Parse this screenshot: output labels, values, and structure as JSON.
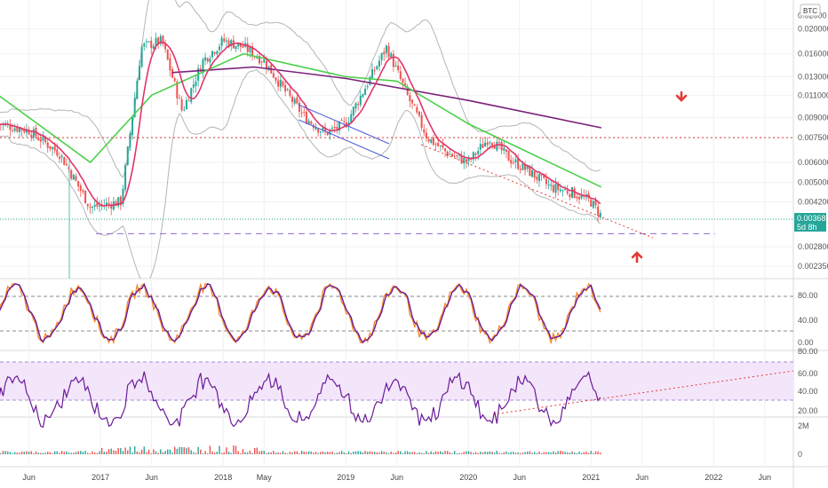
{
  "chart_data": {
    "type": "candlestick",
    "symbol_badge": "BTC",
    "last_price": "0.003682",
    "last_interval": "5d 8h",
    "price_axis": {
      "scale": "log",
      "ylim": [
        0.0021,
        0.026
      ],
      "ticks": [
        "0.020000",
        "0.016000",
        "0.013000",
        "0.011000",
        "0.009000",
        "0.007500",
        "0.006000",
        "0.005000",
        "0.004200",
        "0.002800",
        "0.002350"
      ],
      "top_label_partial": "0.02000"
    },
    "x_axis": {
      "ticks": [
        "Jun",
        "2017",
        "Jun",
        "2018",
        "May",
        "2019",
        "Jun",
        "2020",
        "Jun",
        "2021",
        "Jun",
        "2022",
        "Jun"
      ]
    },
    "reference_levels": [
      {
        "value": 0.0075,
        "style": "dotted",
        "color": "#e53935"
      },
      {
        "value": 0.00315,
        "style": "dashed",
        "color": "#8e6bd8"
      }
    ],
    "arrows": [
      {
        "direction": "down",
        "color": "#e53935"
      },
      {
        "direction": "up",
        "color": "#e53935"
      }
    ],
    "price_series_approx": {
      "x": [
        "2016-03",
        "2016-06",
        "2016-09",
        "2016-12",
        "2017-03",
        "2017-05",
        "2017-07",
        "2017-09",
        "2017-11",
        "2018-01",
        "2018-03",
        "2018-05",
        "2018-07",
        "2018-09",
        "2018-11",
        "2019-01",
        "2019-03",
        "2019-05",
        "2019-07",
        "2019-09",
        "2019-11",
        "2020-01",
        "2020-03",
        "2020-05",
        "2020-07",
        "2020-09",
        "2020-11",
        "2021-01",
        "2021-02"
      ],
      "close": [
        0.0085,
        0.008,
        0.0065,
        0.004,
        0.0042,
        0.017,
        0.018,
        0.0095,
        0.015,
        0.018,
        0.017,
        0.015,
        0.0115,
        0.009,
        0.0078,
        0.0085,
        0.012,
        0.017,
        0.011,
        0.0075,
        0.0065,
        0.006,
        0.0075,
        0.0062,
        0.0055,
        0.0048,
        0.0046,
        0.0042,
        0.0037
      ]
    },
    "ma_long": {
      "x": [
        "2017-08",
        "2018-04",
        "2019-01",
        "2020-01",
        "2021-02"
      ],
      "values": [
        0.0135,
        0.0142,
        0.0128,
        0.0105,
        0.0082
      ]
    },
    "ma_medium": {
      "x": [
        "2016-03",
        "2016-12",
        "2017-06",
        "2018-03",
        "2019-01",
        "2019-06",
        "2020-01",
        "2021-02"
      ],
      "values": [
        0.011,
        0.006,
        0.011,
        0.016,
        0.013,
        0.0125,
        0.0085,
        0.0048
      ]
    },
    "oscillators": [
      {
        "name": "stochastic",
        "ticks": [
          "80.00",
          "40.00",
          "0.00"
        ],
        "levels": [
          80,
          20
        ]
      },
      {
        "name": "rsi",
        "ticks": [
          "80.00",
          "60.00",
          "40.00",
          "20.00"
        ],
        "band": [
          30,
          70
        ]
      },
      {
        "name": "volume",
        "ticks": [
          "2M",
          "0"
        ]
      }
    ]
  }
}
